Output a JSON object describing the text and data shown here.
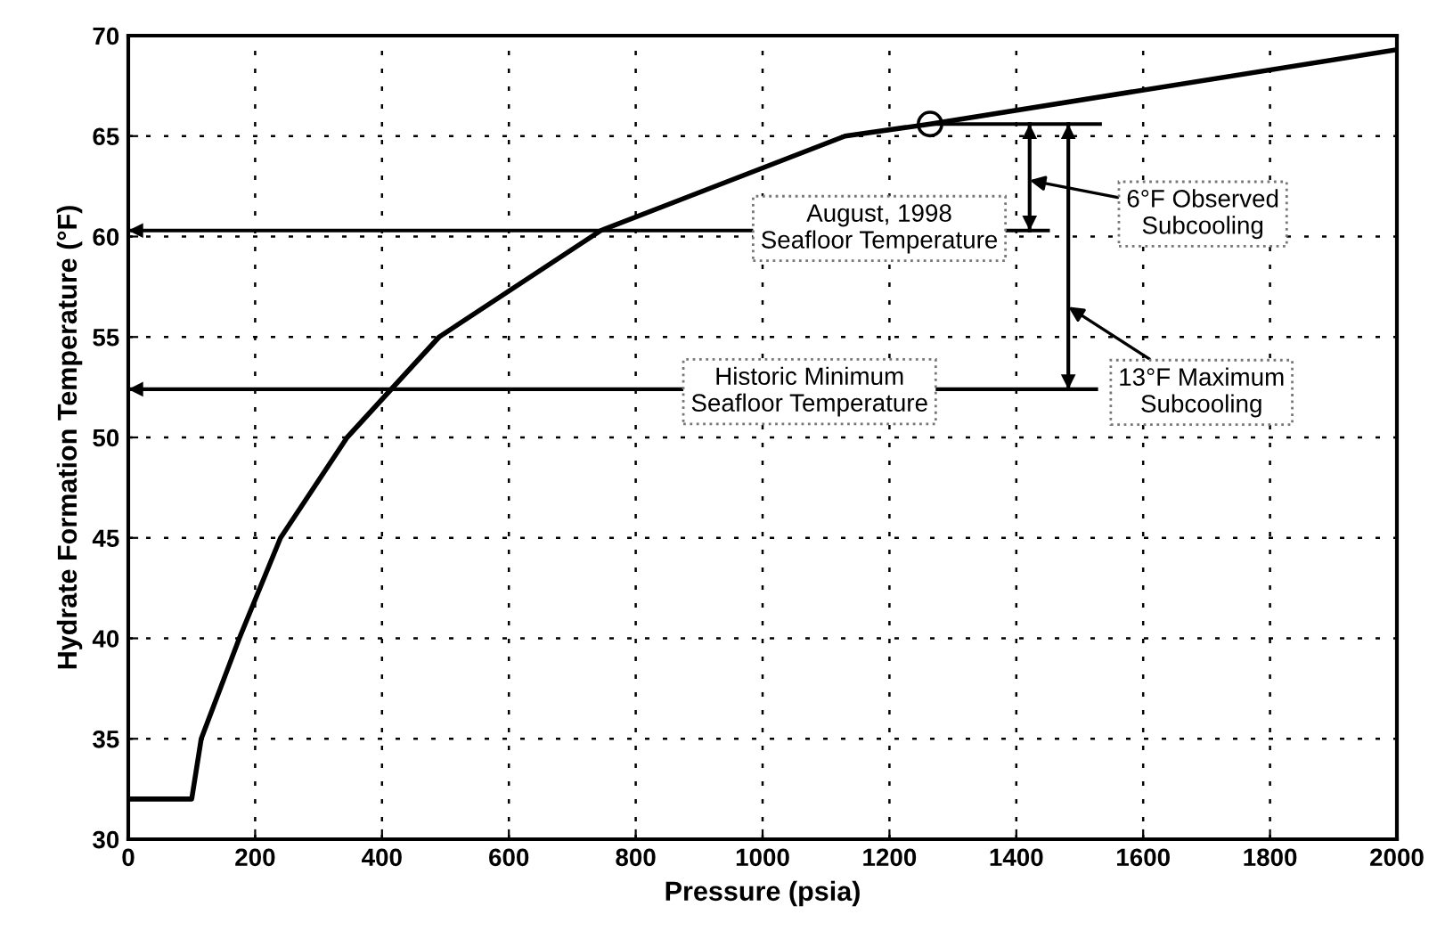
{
  "chart_data": {
    "type": "line",
    "xlabel": "Pressure (psia)",
    "ylabel": "Hydrate Formation Temperature (°F)",
    "xlim": [
      0,
      2000
    ],
    "xticks": [
      0,
      200,
      400,
      600,
      800,
      1000,
      1200,
      1400,
      1600,
      1800,
      2000
    ],
    "ylim": [
      30,
      70
    ],
    "yticks": [
      30,
      35,
      40,
      45,
      50,
      55,
      60,
      65,
      70
    ],
    "grid": true,
    "series": [
      {
        "color": "#000000",
        "x": [
          0,
          100,
          115,
          175,
          240,
          345,
          490,
          745,
          1130,
          1264,
          2000
        ],
        "values": [
          32,
          32,
          35,
          40,
          45,
          50,
          55,
          60.3,
          65,
          65.6,
          69.3
        ],
        "marker": "none"
      },
      {
        "type": "scatter",
        "color": "#000000",
        "x": [
          1264
        ],
        "values": [
          65.6
        ],
        "marker": "circle"
      },
      {
        "color": "#000000",
        "x": [
          1264,
          1532
        ],
        "values": [
          65.6,
          65.6
        ],
        "marker": "none"
      },
      {
        "color": "#000000",
        "x": [
          1421,
          1421
        ],
        "values": [
          65.6,
          60.3
        ]
      },
      {
        "color": "#000000",
        "x": [
          1482,
          1482
        ],
        "values": [
          65.6,
          52.4
        ]
      }
    ],
    "ref_lines": [
      {
        "axis": "y",
        "value": 60.3,
        "label": "August, 1998\nSeafloor Temperature",
        "color": "#000000"
      },
      {
        "axis": "y",
        "value": 52.4,
        "label": "Historic Minimum\nSeafloor Temperature",
        "color": "#000000"
      }
    ],
    "annotations": [
      {
        "text": "6°F Observed\nSubcooling",
        "x": 1421,
        "y": 62.8
      },
      {
        "text": "13°F Maximum\nSubcooling",
        "x": 1482,
        "y": 56.5
      }
    ]
  }
}
